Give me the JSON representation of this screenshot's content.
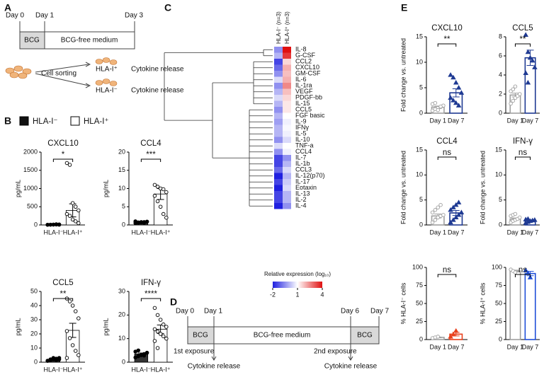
{
  "panel_a": {
    "label": "A",
    "day0": "Day 0",
    "day1": "Day 1",
    "day3": "Day 3",
    "bcg": "BCG",
    "medium": "BCG-free medium",
    "sorting": "Cell sorting",
    "pos": "HLA-I⁺",
    "neg": "HLA-I⁻",
    "release1": "Cytokine release",
    "release2": "Cytokine release"
  },
  "panel_b": {
    "label": "B",
    "legend": [
      {
        "name": "HLA-I⁻",
        "color": "#111111"
      },
      {
        "name": "HLA-I⁺",
        "color": "#ffffff"
      }
    ]
  },
  "panel_c": {
    "label": "C"
  },
  "panel_d": {
    "label": "D",
    "day0": "Day 0",
    "day1": "Day 1",
    "day6": "Day 6",
    "day7": "Day 7",
    "bcg1": "BCG",
    "medium": "BCG-free medium",
    "bcg2": "BCG",
    "exposure1": "1st exposure",
    "exposure2": "2nd exposure",
    "release1": "Cytokine release",
    "release2": "Cytokine release"
  },
  "panel_e": {
    "label": "E"
  },
  "chart_data": [
    {
      "type": "bar",
      "title": "CXCL10",
      "ylabel": "pg/mL",
      "categories": [
        "HLA-I⁻",
        "HLA-I⁺"
      ],
      "values": [
        10,
        400
      ],
      "errors": [
        2,
        180
      ],
      "points": [
        [
          5,
          8,
          10,
          12,
          15,
          5,
          8,
          10,
          20,
          7
        ],
        [
          1700,
          1650,
          600,
          500,
          400,
          300,
          250,
          150,
          100,
          50
        ]
      ],
      "colors": [
        "#333333",
        "#ffffff"
      ],
      "bar_style": "solid",
      "markers": [
        "filled-circle",
        "open-circle"
      ],
      "significance": "*",
      "ylim": [
        0,
        2000
      ],
      "yticks": [
        0,
        500,
        1000,
        1500,
        2000
      ]
    },
    {
      "type": "bar",
      "title": "CCL4",
      "ylabel": "pg/mL",
      "categories": [
        "HLA-I⁻",
        "HLA-I⁺"
      ],
      "values": [
        0.8,
        8.5
      ],
      "errors": [
        0.1,
        1.5
      ],
      "points": [
        [
          0.5,
          0.6,
          0.7,
          0.8,
          0.9,
          1,
          0.7,
          0.8,
          0.6,
          0.9
        ],
        [
          11,
          10.5,
          10,
          9.8,
          9,
          8,
          6.5,
          5,
          3,
          2
        ]
      ],
      "colors": [
        "#333333",
        "#ffffff"
      ],
      "bar_style": "solid",
      "markers": [
        "filled-circle",
        "open-circle"
      ],
      "significance": "***",
      "ylim": [
        0,
        20
      ],
      "yticks": [
        0,
        5,
        10,
        15,
        20
      ]
    },
    {
      "type": "bar",
      "title": "CCL5",
      "ylabel": "pg/mL",
      "categories": [
        "HLA-I⁻",
        "HLA-I⁺"
      ],
      "values": [
        2,
        22.5
      ],
      "errors": [
        0.3,
        5
      ],
      "points": [
        [
          1,
          1.5,
          2,
          2.5,
          3,
          1,
          2,
          3,
          1.5,
          2
        ],
        [
          45,
          43,
          40,
          36,
          31,
          22,
          17,
          12,
          8,
          5,
          3
        ]
      ],
      "colors": [
        "#333333",
        "#ffffff"
      ],
      "bar_style": "solid",
      "markers": [
        "filled-circle",
        "open-circle"
      ],
      "significance": "**",
      "ylim": [
        0,
        50
      ],
      "yticks": [
        0,
        10,
        20,
        30,
        40,
        50
      ]
    },
    {
      "type": "bar",
      "title": "IFN-γ",
      "ylabel": "pg/mL",
      "categories": [
        "HLA-I⁻",
        "HLA-I⁺"
      ],
      "values": [
        3.5,
        14
      ],
      "errors": [
        0.4,
        1.8
      ],
      "points": [
        [
          2,
          2.5,
          3,
          3.5,
          4,
          4.5,
          5,
          3,
          2.8,
          4
        ],
        [
          23,
          20,
          18,
          16,
          15,
          14,
          13,
          12,
          11,
          10,
          9,
          6
        ]
      ],
      "colors": [
        "#333333",
        "#ffffff"
      ],
      "bar_style": "solid",
      "markers": [
        "filled-circle",
        "open-circle"
      ],
      "significance": "****",
      "ylim": [
        0,
        30
      ],
      "yticks": [
        0,
        10,
        20,
        30
      ]
    },
    {
      "type": "heatmap",
      "columns": [
        "HLA-I⁻ (n=3)",
        "HLA-I⁺ (n=3)"
      ],
      "rows": [
        "IL-8",
        "G-CSF",
        "CCL2",
        "CXCL10",
        "GM-CSF",
        "IL-6",
        "IL-1ra",
        "VEGF",
        "PDGF-bb",
        "IL-15",
        "CCL5",
        "FGF basic",
        "IL-9",
        "IFNγ",
        "IL-5",
        "IL-10",
        "TNF-a",
        "CCL4",
        "IL-7",
        "IL-1b",
        "CCL3",
        "IL-12(p70)",
        "IL-17",
        "Eotaxin",
        "IL-13",
        "IL-2",
        "IL-4"
      ],
      "values": [
        [
          -0.5,
          4
        ],
        [
          0,
          3.5
        ],
        [
          -1.5,
          1.5
        ],
        [
          -1,
          2
        ],
        [
          -0.5,
          1.8
        ],
        [
          0.5,
          2
        ],
        [
          -0.5,
          2.5
        ],
        [
          0,
          1.8
        ],
        [
          0.5,
          1.5
        ],
        [
          0,
          1.3
        ],
        [
          -0.5,
          1.3
        ],
        [
          0,
          1
        ],
        [
          -0.3,
          0.8
        ],
        [
          0,
          0.9
        ],
        [
          0,
          0.8
        ],
        [
          -0.5,
          0.5
        ],
        [
          0.5,
          1
        ],
        [
          -0.5,
          0.8
        ],
        [
          -1.5,
          -0.5
        ],
        [
          -1.5,
          0
        ],
        [
          -1,
          0.5
        ],
        [
          -2,
          0
        ],
        [
          -1.5,
          0.3
        ],
        [
          -2,
          0.5
        ],
        [
          -1.5,
          0
        ],
        [
          -1.5,
          0
        ],
        [
          -2,
          -0.5
        ]
      ],
      "colorbar_title": "Relative expression (log₁₀)",
      "clim": [
        -2,
        4
      ],
      "cticks": [
        -2,
        1,
        4
      ],
      "colors": [
        "#2020e0",
        "#ffffff",
        "#e01010"
      ]
    },
    {
      "type": "bar",
      "title": "CXCL10",
      "ylabel": "Fold change vs. untreated",
      "categories": [
        "Day 1",
        "Day 7"
      ],
      "values": [
        1.2,
        4
      ],
      "errors": [
        0.2,
        0.8
      ],
      "points": [
        [
          0.5,
          0.8,
          1,
          1.2,
          1.5,
          1.8,
          2,
          0.6,
          1.3
        ],
        [
          7.5,
          7,
          6,
          5,
          4,
          3,
          2.5,
          2,
          1.5
        ]
      ],
      "colors": [
        "#a0a0a0",
        "#1f3a93"
      ],
      "bar_style": "outline",
      "markers": [
        "open-circle",
        "filled-triangle"
      ],
      "significance": "**",
      "ylim": [
        0,
        15
      ],
      "yticks": [
        0,
        5,
        10,
        15
      ]
    },
    {
      "type": "bar",
      "title": "CCL5",
      "categories": [
        "Day 1",
        "Day 7"
      ],
      "values": [
        1.9,
        5.8
      ],
      "errors": [
        0.2,
        0.8
      ],
      "points": [
        [
          1,
          1.3,
          1.6,
          1.8,
          2,
          2.3,
          2.5,
          2.8
        ],
        [
          8.2,
          6.4,
          5.8,
          5.5,
          4.8,
          4.2,
          3.2
        ]
      ],
      "colors": [
        "#a0a0a0",
        "#1f3a93"
      ],
      "bar_style": "outline",
      "markers": [
        "open-circle",
        "filled-triangle"
      ],
      "significance": "**",
      "ylim": [
        0,
        8
      ],
      "yticks": [
        0,
        2,
        4,
        6,
        8
      ]
    },
    {
      "type": "bar",
      "title": "CCL4",
      "ylabel": "Fold change vs. untreated",
      "categories": [
        "Day 1",
        "Day 7"
      ],
      "values": [
        1.8,
        2.4
      ],
      "errors": [
        0.4,
        0.5
      ],
      "points": [
        [
          0.5,
          1,
          1.5,
          1.8,
          2,
          2.5,
          3,
          3.5,
          4
        ],
        [
          0.5,
          1,
          1.5,
          2,
          2.5,
          3,
          3.5,
          4,
          4.5
        ]
      ],
      "colors": [
        "#a0a0a0",
        "#1f3a93"
      ],
      "bar_style": "outline",
      "markers": [
        "open-circle",
        "filled-triangle"
      ],
      "significance": "ns",
      "ylim": [
        0,
        15
      ],
      "yticks": [
        0,
        5,
        10,
        15
      ]
    },
    {
      "type": "bar",
      "title": "IFN-γ",
      "ylabel": "Fold change vs. untreated",
      "categories": [
        "Day 1",
        "Day 7"
      ],
      "values": [
        1.2,
        0.9
      ],
      "errors": [
        0.2,
        0.1
      ],
      "points": [
        [
          0.5,
          0.8,
          1,
          1.2,
          1.5,
          1.8,
          2,
          2.2
        ],
        [
          0.4,
          0.6,
          0.8,
          0.9,
          1,
          1.1,
          1.2
        ]
      ],
      "colors": [
        "#a0a0a0",
        "#1f3a93"
      ],
      "bar_style": "outline",
      "markers": [
        "open-circle",
        "filled-triangle"
      ],
      "significance": "ns",
      "ylim": [
        0,
        15
      ],
      "yticks": [
        0,
        5,
        10,
        15
      ]
    },
    {
      "type": "bar",
      "ylabel": "% HLA-I⁻ cells",
      "categories": [
        "Day 1",
        "Day 7"
      ],
      "values": [
        3,
        7.5
      ],
      "errors": [
        0.6,
        2.5
      ],
      "points": [
        [
          2,
          3,
          4
        ],
        [
          4,
          7,
          12
        ]
      ],
      "colors": [
        "#a0a0a0",
        "#e8401c"
      ],
      "bar_style": "outline",
      "markers": [
        "open-circle",
        "filled-triangle"
      ],
      "significance": "ns",
      "ylim": [
        0,
        100
      ],
      "yticks": [
        0,
        25,
        50,
        75,
        100
      ]
    },
    {
      "type": "bar",
      "ylabel": "% HLA-I⁺ cells",
      "categories": [
        "Day 1",
        "Day 7"
      ],
      "values": [
        95,
        91.5
      ],
      "errors": [
        1.2,
        3
      ],
      "points": [
        [
          97,
          95,
          93
        ],
        [
          96,
          92,
          86
        ]
      ],
      "colors": [
        "#a0a0a0",
        "#1f4fd8"
      ],
      "bar_style": "outline",
      "markers": [
        "open-circle",
        "filled-triangle"
      ],
      "significance": "ns",
      "ylim": [
        0,
        100
      ],
      "yticks": [
        0,
        25,
        50,
        75,
        100
      ]
    }
  ]
}
